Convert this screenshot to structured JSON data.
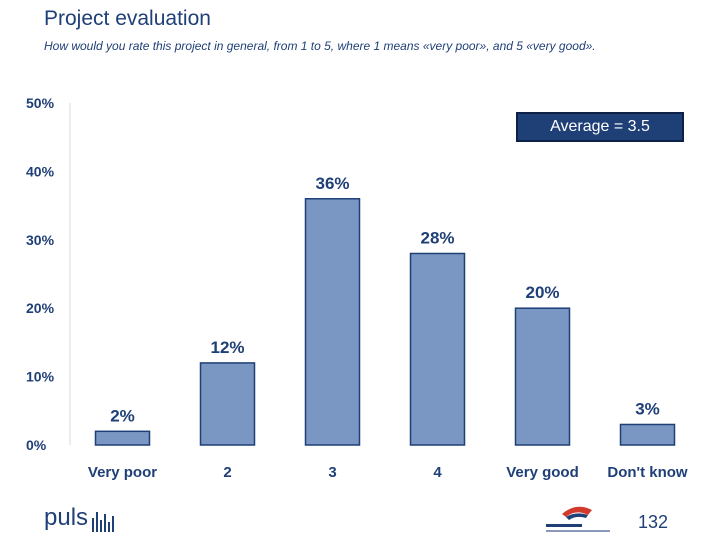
{
  "slide": {
    "title": "Project evaluation",
    "subtitle": "How would you rate this project in general, from 1 to 5, where 1 means «very poor», and 5 «very good».",
    "average_label": "Average = 3.5",
    "page_number": "132",
    "brand_logo_text": "puls"
  },
  "colors": {
    "bar_fill": "#7a96c2",
    "bar_stroke": "#1f3f77",
    "text": "#1f3f77",
    "average_box": "#1f3f77"
  },
  "chart_data": {
    "type": "bar",
    "categories": [
      "Very poor",
      "2",
      "3",
      "4",
      "Very good",
      "Don't know"
    ],
    "values": [
      2,
      12,
      36,
      28,
      20,
      3
    ],
    "data_labels": [
      "2%",
      "12%",
      "36%",
      "28%",
      "20%",
      "3%"
    ],
    "y_ticks": [
      "0%",
      "10%",
      "20%",
      "30%",
      "40%",
      "50%"
    ],
    "ylim": [
      0,
      50
    ],
    "grid": false
  }
}
